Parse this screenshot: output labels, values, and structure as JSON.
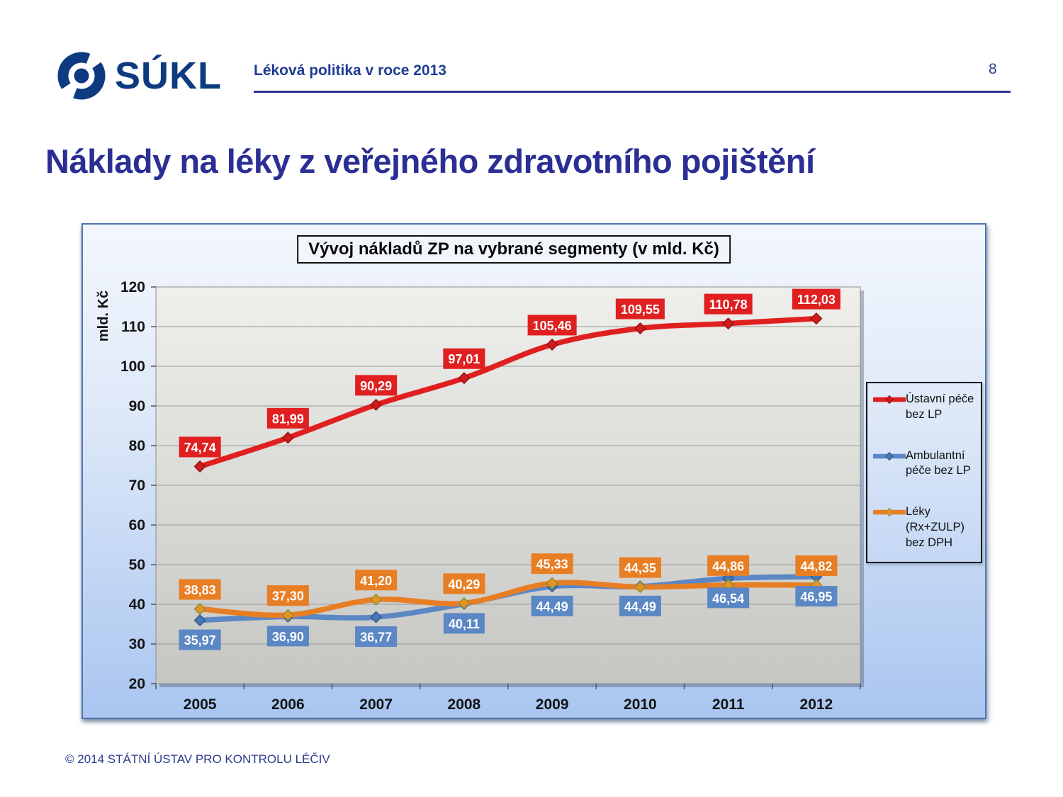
{
  "header": {
    "logo_text": "SÚKL",
    "title": "Léková politika v roce 2013",
    "page_number": "8"
  },
  "slide_title": "Náklady na léky z veřejného zdravotního pojištění",
  "footer": {
    "copyright": "© 2014  STÁTNÍ ÚSTAV PRO KONTROLU LÉČIV"
  },
  "colors": {
    "navy": "#0E3A80",
    "panel_border": "#4E74B0",
    "grid": "#9A9A9A"
  },
  "chart_data": {
    "type": "line",
    "title": "Vývoj nákladů ZP na vybrané segmenty (v mld. Kč)",
    "ylabel": "mld. Kč",
    "ylim": [
      20,
      120
    ],
    "ytick_step": 10,
    "grid": true,
    "legend_position": "right",
    "smoothed_lines": true,
    "categories": [
      "2005",
      "2006",
      "2007",
      "2008",
      "2009",
      "2010",
      "2011",
      "2012"
    ],
    "series": [
      {
        "name": "Ústavní péče bez LP",
        "color": "#E02020",
        "marker_fill": "#CE1B1B",
        "marker_stroke": "#9A1212",
        "label_side": "above",
        "values": [
          74.74,
          81.99,
          90.29,
          97.01,
          105.46,
          109.55,
          110.78,
          112.03
        ]
      },
      {
        "name": "Ambulantní péče bez LP",
        "color": "#5B87C5",
        "marker_fill": "#4677B2",
        "marker_stroke": "#35598C",
        "label_side": "below",
        "values": [
          35.97,
          36.9,
          36.77,
          40.11,
          44.49,
          44.49,
          46.54,
          46.95
        ]
      },
      {
        "name": "Léky (Rx+ZULP) bez DPH",
        "color": "#E87E23",
        "marker_fill": "#E8921F",
        "marker_stroke": "#8C8F3E",
        "label_side": "above",
        "values": [
          38.83,
          37.3,
          41.2,
          40.29,
          45.33,
          44.35,
          44.86,
          44.82
        ]
      }
    ]
  }
}
